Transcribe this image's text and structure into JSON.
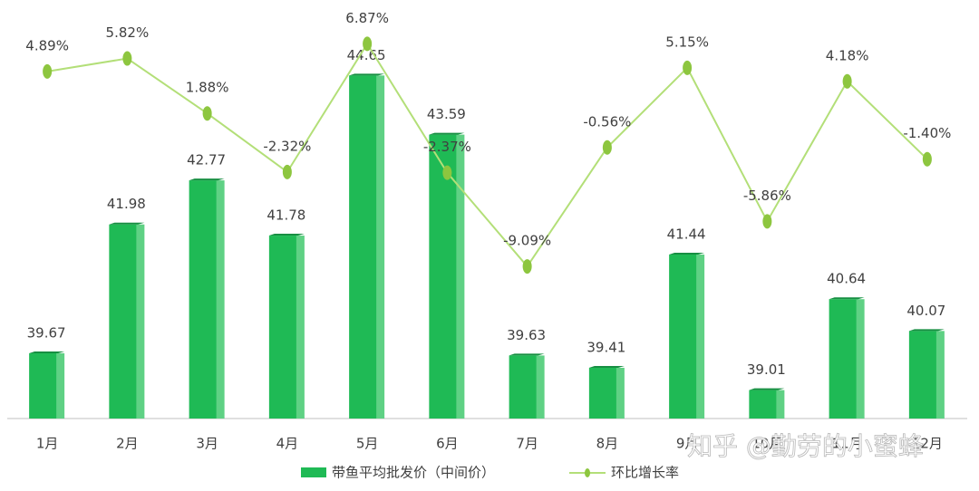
{
  "chart_data": {
    "type": "bar-line",
    "categories": [
      "1月",
      "2月",
      "3月",
      "4月",
      "5月",
      "6月",
      "7月",
      "8月",
      "9月",
      "10月",
      "11月",
      "12月"
    ],
    "series": [
      {
        "name": "带鱼平均批发价（中间价）",
        "type": "bar",
        "color": "#1fba55",
        "values": [
          39.67,
          41.98,
          42.77,
          41.78,
          44.65,
          43.59,
          39.63,
          39.41,
          41.44,
          39.01,
          40.64,
          40.07
        ]
      },
      {
        "name": "环比增长率",
        "type": "line",
        "axis": "y2",
        "color": "#b3df78",
        "marker_color": "#8dc63f",
        "values": [
          4.89,
          5.82,
          1.88,
          -2.32,
          6.87,
          -2.37,
          -9.09,
          -0.56,
          5.15,
          -5.86,
          4.18,
          -1.4
        ],
        "value_labels": [
          "4.89%",
          "5.82%",
          "1.88%",
          "-2.32%",
          "6.87%",
          "-2.37%",
          "-9.09%",
          "-0.56%",
          "5.15%",
          "-5.86%",
          "4.18%",
          "-1.40%"
        ]
      }
    ],
    "ylim": [
      38.5,
      45.5
    ],
    "y2lim": [
      -20,
      8
    ],
    "watermark": "知乎 @勤劳的小蜜蜂"
  }
}
